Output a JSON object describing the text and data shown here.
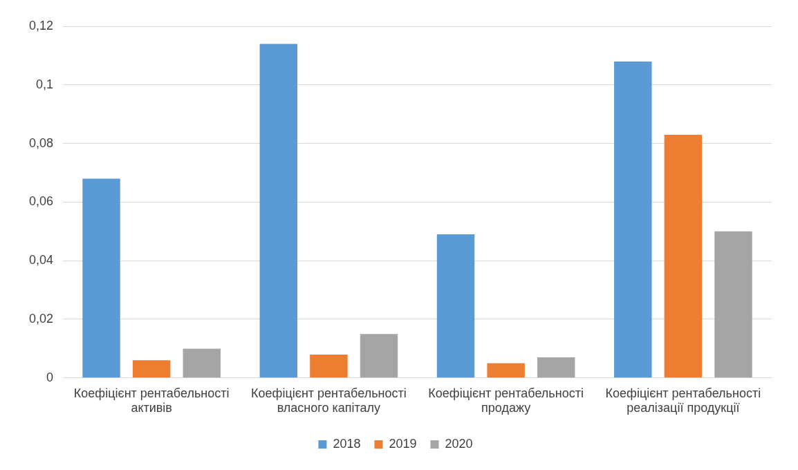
{
  "chart_data": {
    "type": "bar",
    "categories": [
      "Коефіцієнт рентабельності активів",
      "Коефіцієнт рентабельності власного капіталу",
      "Коефіцієнт рентабельності продажу",
      "Коефіцієнт рентабельності реалізації продукції"
    ],
    "series": [
      {
        "name": "2018",
        "color": "#5b9bd5",
        "values": [
          0.068,
          0.114,
          0.049,
          0.108
        ]
      },
      {
        "name": "2019",
        "color": "#ed7d31",
        "values": [
          0.006,
          0.008,
          0.005,
          0.083
        ]
      },
      {
        "name": "2020",
        "color": "#a5a5a5",
        "values": [
          0.01,
          0.015,
          0.007,
          0.05
        ]
      }
    ],
    "ylim": [
      0,
      0.12
    ],
    "yticks": [
      0,
      {
        "value": 0.02,
        "label": "0,02"
      },
      {
        "value": 0.04,
        "label": "0,04"
      },
      {
        "value": 0.06,
        "label": "0,06"
      },
      {
        "value": 0.08,
        "label": "0,08"
      },
      {
        "value": 0.1,
        "label": "0,1"
      },
      {
        "value": 0.12,
        "label": "0,12"
      }
    ],
    "grid": "y",
    "legend": "bottom"
  }
}
